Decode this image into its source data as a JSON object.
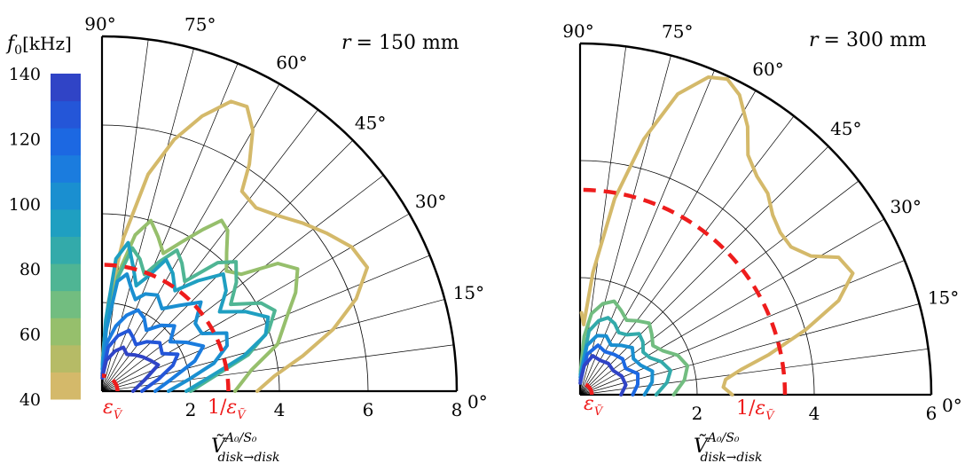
{
  "colorbar": {
    "label_symbol": "f",
    "label_sub": "0",
    "label_unit": "[kHz]",
    "ticks": [
      "140",
      "120",
      "100",
      "80",
      "60",
      "40"
    ],
    "range": [
      40,
      140
    ],
    "colors": [
      "#d4b96a",
      "#b6bb66",
      "#96bf6c",
      "#72bd80",
      "#4fb594",
      "#33aaaa",
      "#1f9fc1",
      "#1a8fd0",
      "#1b7cde",
      "#1c68e2",
      "#2456d8",
      "#3044c6"
    ]
  },
  "colors": {
    "ref_line": "#ee1c1c",
    "grid": "#000000",
    "lowest_freq": "#cbb564"
  },
  "shared": {
    "xlabel_main": "Ṽ",
    "xlabel_sup": "A₀/S₀",
    "xlabel_sub": "disk→disk",
    "eps_main": "ε",
    "eps_sub": "Ṽ",
    "inv_eps_prefix": "1/",
    "inv_eps_main": "ε",
    "inv_eps_sub": "Ṽ"
  },
  "chart_data": [
    {
      "type": "polar-line",
      "r_label": "r",
      "r_value": "= 150 mm",
      "rmax": 8,
      "radial_ticks": [
        "2",
        "4",
        "6",
        "8"
      ],
      "radial_tick_values": [
        2,
        4,
        6,
        8
      ],
      "angular_ticks": [
        "0°",
        "15°",
        "30°",
        "45°",
        "60°",
        "75°",
        "90°"
      ],
      "angular_tick_values": [
        0,
        15,
        30,
        45,
        60,
        75,
        90
      ],
      "epsilon_radius": 0.35,
      "inverse_epsilon_radius": 2.85,
      "series": [
        {
          "color_index": 0,
          "width": 4,
          "points": [
            [
              0,
              3.5
            ],
            [
              5,
              3.9
            ],
            [
              10,
              4.6
            ],
            [
              15,
              5.4
            ],
            [
              20,
              6.1
            ],
            [
              25,
              6.6
            ],
            [
              30,
              6.5
            ],
            [
              35,
              6.2
            ],
            [
              40,
              5.9
            ],
            [
              45,
              5.6
            ],
            [
              50,
              5.4
            ],
            [
              55,
              5.5
            ],
            [
              57,
              6.1
            ],
            [
              60,
              6.8
            ],
            [
              63,
              7.2
            ],
            [
              66,
              7.15
            ],
            [
              70,
              6.6
            ],
            [
              74,
              5.9
            ],
            [
              78,
              5.0
            ],
            [
              82,
              3.5
            ],
            [
              86,
              2.0
            ],
            [
              89,
              0.8
            ]
          ]
        },
        {
          "color_index": 2,
          "width": 4,
          "points": [
            [
              0,
              3.0
            ],
            [
              8,
              3.4
            ],
            [
              15,
              4.1
            ],
            [
              22,
              4.5
            ],
            [
              27,
              4.9
            ],
            [
              32,
              5.2
            ],
            [
              36,
              4.9
            ],
            [
              40,
              4.1
            ],
            [
              44,
              3.9
            ],
            [
              48,
              4.2
            ],
            [
              52,
              4.6
            ],
            [
              55,
              4.7
            ],
            [
              58,
              4.3
            ],
            [
              62,
              3.8
            ],
            [
              66,
              3.4
            ],
            [
              70,
              3.7
            ],
            [
              74,
              4.0
            ],
            [
              78,
              3.6
            ],
            [
              82,
              2.7
            ],
            [
              86,
              1.6
            ],
            [
              89,
              0.6
            ]
          ]
        },
        {
          "color_index": 4,
          "width": 4,
          "points": [
            [
              0,
              2.0
            ],
            [
              8,
              2.6
            ],
            [
              14,
              3.4
            ],
            [
              20,
              4.0
            ],
            [
              25,
              4.3
            ],
            [
              29,
              4.1
            ],
            [
              34,
              3.5
            ],
            [
              39,
              3.9
            ],
            [
              44,
              4.2
            ],
            [
              48,
              3.9
            ],
            [
              53,
              3.1
            ],
            [
              58,
              3.4
            ],
            [
              62,
              3.6
            ],
            [
              66,
              3.2
            ],
            [
              70,
              2.8
            ],
            [
              74,
              3.1
            ],
            [
              78,
              3.3
            ],
            [
              82,
              2.6
            ],
            [
              86,
              1.4
            ],
            [
              89,
              0.5
            ]
          ]
        },
        {
          "color_index": 6,
          "width": 4,
          "points": [
            [
              0,
              1.9
            ],
            [
              8,
              2.5
            ],
            [
              14,
              3.3
            ],
            [
              19,
              3.9
            ],
            [
              24,
              4.1
            ],
            [
              29,
              3.7
            ],
            [
              34,
              3.2
            ],
            [
              39,
              3.6
            ],
            [
              44,
              3.8
            ],
            [
              49,
              3.3
            ],
            [
              54,
              2.8
            ],
            [
              59,
              3.1
            ],
            [
              64,
              3.3
            ],
            [
              68,
              2.8
            ],
            [
              72,
              2.5
            ],
            [
              76,
              2.9
            ],
            [
              80,
              3.4
            ],
            [
              84,
              3.0
            ],
            [
              87,
              1.6
            ],
            [
              89,
              0.6
            ]
          ]
        },
        {
          "color_index": 7,
          "width": 4,
          "points": [
            [
              0,
              1.5
            ],
            [
              8,
              2.0
            ],
            [
              14,
              2.6
            ],
            [
              20,
              3.0
            ],
            [
              25,
              3.1
            ],
            [
              30,
              2.6
            ],
            [
              36,
              2.6
            ],
            [
              42,
              3.0
            ],
            [
              48,
              2.6
            ],
            [
              54,
              2.3
            ],
            [
              60,
              2.5
            ],
            [
              66,
              2.4
            ],
            [
              70,
              2.2
            ],
            [
              74,
              2.4
            ],
            [
              78,
              2.7
            ],
            [
              82,
              2.5
            ],
            [
              86,
              1.4
            ],
            [
              89,
              0.5
            ]
          ]
        },
        {
          "color_index": 8,
          "width": 4,
          "points": [
            [
              0,
              1.2
            ],
            [
              10,
              1.6
            ],
            [
              18,
              2.2
            ],
            [
              24,
              2.5
            ],
            [
              30,
              2.2
            ],
            [
              36,
              1.9
            ],
            [
              42,
              2.2
            ],
            [
              48,
              2.0
            ],
            [
              54,
              1.7
            ],
            [
              60,
              1.9
            ],
            [
              66,
              2.0
            ],
            [
              72,
              1.8
            ],
            [
              78,
              1.5
            ],
            [
              84,
              1.1
            ],
            [
              89,
              0.4
            ]
          ]
        },
        {
          "color_index": 10,
          "width": 4,
          "points": [
            [
              0,
              0.9
            ],
            [
              12,
              1.3
            ],
            [
              20,
              1.7
            ],
            [
              26,
              1.9
            ],
            [
              32,
              1.6
            ],
            [
              40,
              1.7
            ],
            [
              48,
              1.5
            ],
            [
              54,
              1.3
            ],
            [
              60,
              1.4
            ],
            [
              66,
              1.5
            ],
            [
              74,
              1.3
            ],
            [
              82,
              1.0
            ],
            [
              89,
              0.35
            ]
          ]
        },
        {
          "color_index": 11,
          "width": 4,
          "points": [
            [
              0,
              0.7
            ],
            [
              15,
              1.0
            ],
            [
              25,
              1.4
            ],
            [
              32,
              1.3
            ],
            [
              40,
              1.2
            ],
            [
              48,
              1.1
            ],
            [
              56,
              1.0
            ],
            [
              64,
              1.1
            ],
            [
              72,
              0.95
            ],
            [
              82,
              0.7
            ],
            [
              89,
              0.3
            ]
          ]
        }
      ]
    },
    {
      "type": "polar-line",
      "r_label": "r",
      "r_value": "= 300 mm",
      "rmax": 6,
      "radial_ticks": [
        "2",
        "4",
        "6"
      ],
      "radial_tick_values": [
        2,
        4,
        6
      ],
      "angular_ticks": [
        "0°",
        "15°",
        "30°",
        "45°",
        "60°",
        "75°",
        "90°"
      ],
      "angular_tick_values": [
        0,
        15,
        30,
        45,
        60,
        75,
        90
      ],
      "epsilon_radius": 0.2,
      "inverse_epsilon_radius": 3.5,
      "series": [
        {
          "color_index": 0,
          "width": 4,
          "points": [
            [
              0,
              2.6
            ],
            [
              3,
              2.45
            ],
            [
              6,
              2.5
            ],
            [
              9,
              2.8
            ],
            [
              12,
              3.3
            ],
            [
              16,
              4.0
            ],
            [
              20,
              4.7
            ],
            [
              24,
              5.1
            ],
            [
              28,
              5.0
            ],
            [
              31,
              4.6
            ],
            [
              35,
              4.4
            ],
            [
              39,
              4.4
            ],
            [
              43,
              4.5
            ],
            [
              47,
              4.7
            ],
            [
              51,
              4.8
            ],
            [
              55,
              5.0
            ],
            [
              58,
              5.4
            ],
            [
              62,
              5.8
            ],
            [
              65,
              5.95
            ],
            [
              68,
              5.85
            ],
            [
              72,
              5.4
            ],
            [
              76,
              4.5
            ],
            [
              80,
              3.4
            ],
            [
              84,
              2.1
            ],
            [
              87,
              1.2
            ],
            [
              89,
              1.4
            ]
          ]
        },
        {
          "color_index": 3,
          "width": 4,
          "points": [
            [
              0,
              1.6
            ],
            [
              8,
              1.8
            ],
            [
              15,
              1.9
            ],
            [
              22,
              1.8
            ],
            [
              28,
              1.6
            ],
            [
              34,
              1.5
            ],
            [
              40,
              1.6
            ],
            [
              46,
              1.7
            ],
            [
              52,
              1.6
            ],
            [
              58,
              1.5
            ],
            [
              64,
              1.6
            ],
            [
              70,
              1.7
            ],
            [
              76,
              1.6
            ],
            [
              82,
              1.4
            ],
            [
              86,
              1.0
            ],
            [
              89,
              0.4
            ]
          ]
        },
        {
          "color_index": 5,
          "width": 4,
          "points": [
            [
              0,
              1.3
            ],
            [
              8,
              1.5
            ],
            [
              15,
              1.6
            ],
            [
              22,
              1.5
            ],
            [
              28,
              1.35
            ],
            [
              34,
              1.3
            ],
            [
              40,
              1.4
            ],
            [
              46,
              1.45
            ],
            [
              52,
              1.3
            ],
            [
              58,
              1.25
            ],
            [
              64,
              1.35
            ],
            [
              70,
              1.4
            ],
            [
              76,
              1.3
            ],
            [
              82,
              1.1
            ],
            [
              89,
              0.35
            ]
          ]
        },
        {
          "color_index": 7,
          "width": 4,
          "points": [
            [
              0,
              1.1
            ],
            [
              10,
              1.25
            ],
            [
              18,
              1.3
            ],
            [
              26,
              1.15
            ],
            [
              34,
              1.1
            ],
            [
              42,
              1.2
            ],
            [
              50,
              1.1
            ],
            [
              58,
              1.0
            ],
            [
              66,
              1.1
            ],
            [
              74,
              1.05
            ],
            [
              82,
              0.85
            ],
            [
              89,
              0.3
            ]
          ]
        },
        {
          "color_index": 9,
          "width": 4,
          "points": [
            [
              0,
              0.9
            ],
            [
              10,
              1.0
            ],
            [
              20,
              1.05
            ],
            [
              30,
              0.9
            ],
            [
              40,
              0.95
            ],
            [
              50,
              0.9
            ],
            [
              60,
              0.85
            ],
            [
              70,
              0.9
            ],
            [
              80,
              0.7
            ],
            [
              89,
              0.25
            ]
          ]
        },
        {
          "color_index": 11,
          "width": 4,
          "points": [
            [
              0,
              0.7
            ],
            [
              12,
              0.8
            ],
            [
              24,
              0.78
            ],
            [
              36,
              0.7
            ],
            [
              48,
              0.72
            ],
            [
              60,
              0.68
            ],
            [
              72,
              0.7
            ],
            [
              82,
              0.5
            ],
            [
              89,
              0.2
            ]
          ]
        }
      ]
    }
  ]
}
